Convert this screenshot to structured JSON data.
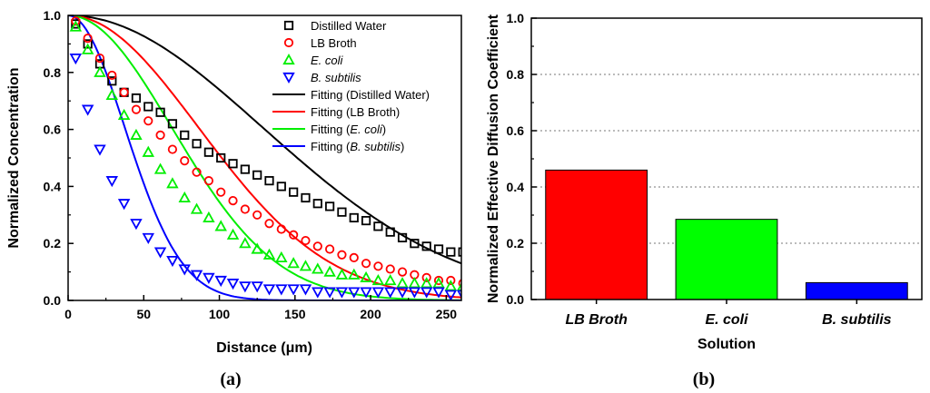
{
  "chart_data": [
    {
      "type": "scatter",
      "panel_label": "(a)",
      "xlabel": "Distance (μm)",
      "ylabel": "Normalized Concentration",
      "xlim": [
        0,
        260
      ],
      "ylim": [
        0,
        1.0
      ],
      "xticks": [
        "0",
        "50",
        "100",
        "150",
        "200",
        "250"
      ],
      "yticks": [
        "0.0",
        "0.2",
        "0.4",
        "0.6",
        "0.8",
        "1.0"
      ],
      "x": [
        5,
        13,
        21,
        29,
        37,
        45,
        53,
        61,
        69,
        77,
        85,
        93,
        101,
        109,
        117,
        125,
        133,
        141,
        149,
        157,
        165,
        173,
        181,
        189,
        197,
        205,
        213,
        221,
        229,
        237,
        245,
        253,
        261
      ],
      "series": [
        {
          "name": "Distilled Water",
          "marker": "square",
          "color": "#000000",
          "values": [
            0.97,
            0.9,
            0.83,
            0.77,
            0.73,
            0.71,
            0.68,
            0.66,
            0.62,
            0.58,
            0.55,
            0.52,
            0.5,
            0.48,
            0.46,
            0.44,
            0.42,
            0.4,
            0.38,
            0.36,
            0.34,
            0.33,
            0.31,
            0.29,
            0.28,
            0.26,
            0.24,
            0.22,
            0.2,
            0.19,
            0.18,
            0.17,
            0.17
          ]
        },
        {
          "name": "LB Broth",
          "marker": "circle",
          "color": "#ff0000",
          "values": [
            0.98,
            0.92,
            0.85,
            0.79,
            0.73,
            0.67,
            0.63,
            0.58,
            0.53,
            0.49,
            0.45,
            0.42,
            0.38,
            0.35,
            0.32,
            0.3,
            0.27,
            0.25,
            0.23,
            0.21,
            0.19,
            0.18,
            0.16,
            0.15,
            0.13,
            0.12,
            0.11,
            0.1,
            0.09,
            0.08,
            0.07,
            0.07,
            0.06
          ]
        },
        {
          "name": "E. coli",
          "marker": "triangle-up",
          "color": "#00ee00",
          "values": [
            0.96,
            0.88,
            0.8,
            0.72,
            0.65,
            0.58,
            0.52,
            0.46,
            0.41,
            0.36,
            0.32,
            0.29,
            0.26,
            0.23,
            0.2,
            0.18,
            0.16,
            0.15,
            0.13,
            0.12,
            0.11,
            0.1,
            0.09,
            0.09,
            0.08,
            0.07,
            0.07,
            0.06,
            0.06,
            0.06,
            0.06,
            0.05,
            0.05
          ]
        },
        {
          "name": "B. subtilis",
          "marker": "triangle-down",
          "color": "#0000ff",
          "values": [
            0.85,
            0.67,
            0.53,
            0.42,
            0.34,
            0.27,
            0.22,
            0.17,
            0.14,
            0.11,
            0.09,
            0.08,
            0.07,
            0.06,
            0.05,
            0.05,
            0.04,
            0.04,
            0.04,
            0.04,
            0.03,
            0.03,
            0.03,
            0.03,
            0.03,
            0.03,
            0.03,
            0.03,
            0.03,
            0.03,
            0.03,
            0.02,
            0.02
          ]
        }
      ],
      "fits": [
        {
          "name": "Fitting (Distilled Water)",
          "color": "#000000",
          "fit_x_scale": 182
        },
        {
          "name": "Fitting (LB Broth)",
          "color": "#ff0000",
          "fit_x_scale": 122
        },
        {
          "name": "Fitting (E. coli)",
          "color": "#00ee00",
          "fit_x_scale": 97
        },
        {
          "name": "Fitting (B. subtilis)",
          "color": "#0000ff",
          "fit_x_scale": 53
        }
      ],
      "legend_position": "top-right",
      "legend_entries": [
        {
          "prefix": "",
          "italic": "",
          "suffix": "Distilled Water"
        },
        {
          "prefix": "",
          "italic": "",
          "suffix": "LB Broth"
        },
        {
          "prefix": "",
          "italic": "E. coli",
          "suffix": ""
        },
        {
          "prefix": "",
          "italic": "B. subtilis",
          "suffix": ""
        },
        {
          "prefix": "Fitting (Distilled Water)",
          "italic": "",
          "suffix": ""
        },
        {
          "prefix": "Fitting (LB Broth)",
          "italic": "",
          "suffix": ""
        },
        {
          "prefix": "Fitting (",
          "italic": "E. coli",
          "suffix": ")"
        },
        {
          "prefix": "Fitting (",
          "italic": "B. subtilis",
          "suffix": ")"
        }
      ]
    },
    {
      "type": "bar",
      "panel_label": "(b)",
      "xlabel": "Solution",
      "ylabel": "Normalized Effective Diffusion Coefficient",
      "ylim": [
        0,
        1.0
      ],
      "yticks": [
        "0.0",
        "0.2",
        "0.4",
        "0.6",
        "0.8",
        "1.0"
      ],
      "categories": [
        "LB Broth",
        "E. coli",
        "B. subtilis"
      ],
      "values": [
        0.46,
        0.285,
        0.06
      ],
      "colors": [
        "#ff0000",
        "#00ff00",
        "#0000ff"
      ],
      "grid": "horizontal dotted"
    }
  ]
}
